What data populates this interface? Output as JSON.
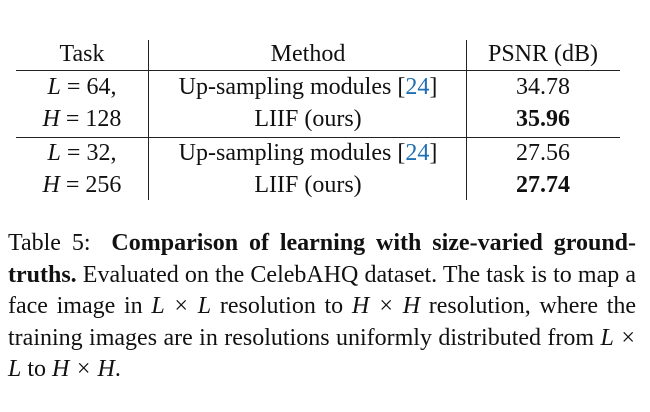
{
  "table": {
    "headers": {
      "task": "Task",
      "method": "Method",
      "psnr": "PSNR (dB)"
    },
    "groups": [
      {
        "task_l": {
          "var": "L",
          "rel": " = 64,"
        },
        "task_h": {
          "var": "H",
          "rel": " = 128"
        },
        "rows": [
          {
            "method": "Up-sampling modules",
            "cite": "24",
            "psnr": "34.78",
            "best": false
          },
          {
            "method": "LIIF (ours)",
            "cite": "",
            "psnr": "35.96",
            "best": true
          }
        ]
      },
      {
        "task_l": {
          "var": "L",
          "rel": " = 32,"
        },
        "task_h": {
          "var": "H",
          "rel": " = 256"
        },
        "rows": [
          {
            "method": "Up-sampling modules",
            "cite": "24",
            "psnr": "27.56",
            "best": false
          },
          {
            "method": "LIIF (ours)",
            "cite": "",
            "psnr": "27.74",
            "best": true
          }
        ]
      }
    ]
  },
  "caption": {
    "label": "Table 5:",
    "title": "Comparison of learning with size-varied ground-truths.",
    "text_1": "Evaluated on the CelebAHQ dataset. The task is to map a face image in",
    "math_1": "L × L",
    "text_2": "resolution to",
    "math_2": "H × H",
    "text_3": "resolution, where the training images are in resolutions uniformly distributed from",
    "math_3": "L × L",
    "text_4": "to",
    "math_4": "H × H",
    "text_5": "."
  }
}
